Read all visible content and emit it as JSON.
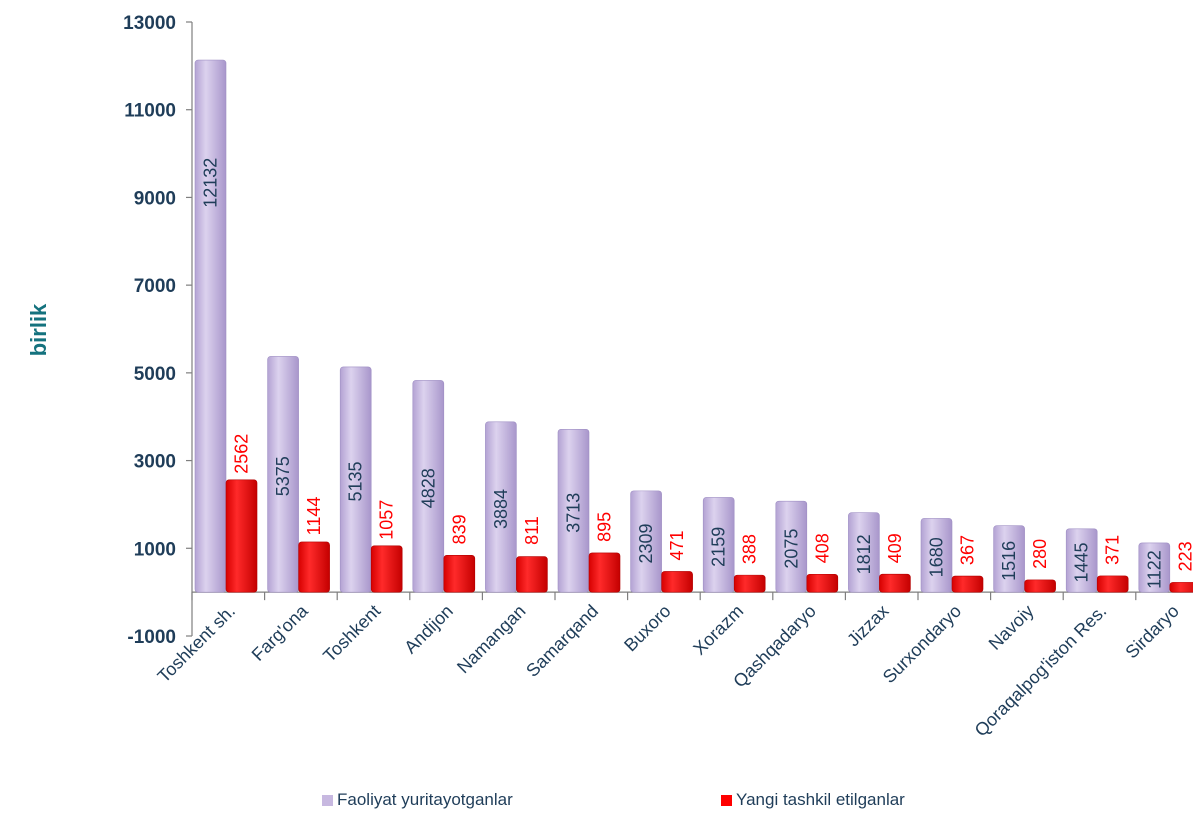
{
  "chart_data": {
    "type": "bar",
    "ylabel": "birlik",
    "ylim": [
      -1000,
      13000
    ],
    "yticks": [
      -1000,
      1000,
      3000,
      5000,
      7000,
      9000,
      11000,
      13000
    ],
    "ytick_labels": [
      "-1000",
      "1000",
      "3000",
      "5000",
      "7000",
      "9000",
      "11000",
      "13000"
    ],
    "grid": false,
    "legend_position": "bottom",
    "categories": [
      "Toshkent sh.",
      "Farg'ona",
      "Toshkent",
      "Andijon",
      "Namangan",
      "Samarqand",
      "Buxoro",
      "Xorazm",
      "Qashqadaryo",
      "Jizzax",
      "Surxondaryo",
      "Navoiy",
      "Qoraqalpog'iston Res.",
      "Sirdaryo"
    ],
    "series": [
      {
        "name": "Faoliyat yuritayotganlar",
        "color": "#c7b8e0",
        "label_color": "#1f3d59",
        "values": [
          12132,
          5375,
          5135,
          4828,
          3884,
          3713,
          2309,
          2159,
          2075,
          1812,
          1680,
          1516,
          1445,
          1122
        ],
        "labels": [
          "12132",
          "5375",
          "5135",
          "4828",
          "3884",
          "3713",
          "2309",
          "2159",
          "2075",
          "1812",
          "1680",
          "1516",
          "1445",
          "1122"
        ]
      },
      {
        "name": "Yangi tashkil etilganlar",
        "color": "#ff0000",
        "label_color": "#ff0000",
        "values": [
          2562,
          1144,
          1057,
          839,
          811,
          895,
          471,
          388,
          408,
          409,
          367,
          280,
          371,
          223
        ],
        "labels": [
          "2562",
          "1144",
          "1057",
          "839",
          "811",
          "895",
          "471",
          "388",
          "408",
          "409",
          "367",
          "280",
          "371",
          "223"
        ]
      }
    ]
  },
  "legend": {
    "items": [
      {
        "label": "Faoliyat yuritayotganlar",
        "color": "#c7b8e0"
      },
      {
        "label": "Yangi tashkil etilganlar",
        "color": "#ff0000"
      }
    ]
  }
}
